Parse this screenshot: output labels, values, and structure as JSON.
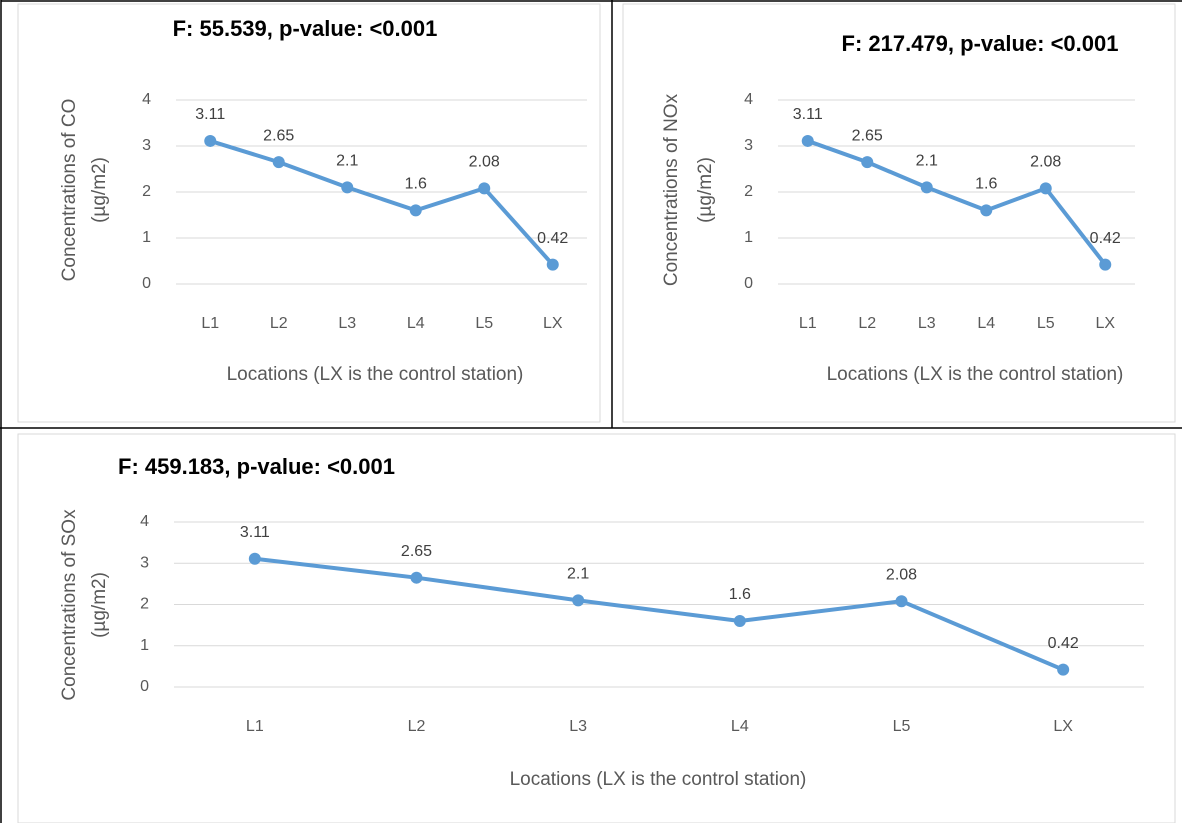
{
  "chart_data": [
    {
      "type": "line",
      "title": "F: 55.539, p-value: <0.001",
      "x_label": "Locations (LX is the control station)",
      "y_label": [
        "Concentrations of CO",
        "(µg/m2)"
      ],
      "categories": [
        "L1",
        "L2",
        "L3",
        "L4",
        "L5",
        "LX"
      ],
      "values": [
        3.11,
        2.65,
        2.1,
        1.6,
        2.08,
        0.42
      ],
      "color": "#5b9bd5",
      "ylim": [
        0,
        4
      ],
      "yticks": [
        0,
        1,
        2,
        3,
        4
      ],
      "grid": true
    },
    {
      "type": "line",
      "title": "F: 217.479, p-value: <0.001",
      "x_label": "Locations (LX is the control station)",
      "y_label": [
        "Concentrations of NOx",
        "(µg/m2)"
      ],
      "categories": [
        "L1",
        "L2",
        "L3",
        "L4",
        "L5",
        "LX"
      ],
      "values": [
        3.11,
        2.65,
        2.1,
        1.6,
        2.08,
        0.42
      ],
      "color": "#5b9bd5",
      "ylim": [
        0,
        4
      ],
      "yticks": [
        0,
        1,
        2,
        3,
        4
      ],
      "grid": true
    },
    {
      "type": "line",
      "title": "F: 459.183, p-value: <0.001",
      "x_label": "Locations (LX is the control station)",
      "y_label": [
        "Concentrations of SOx",
        "(µg/m2)"
      ],
      "categories": [
        "L1",
        "L2",
        "L3",
        "L4",
        "L5",
        "LX"
      ],
      "values": [
        3.11,
        2.65,
        2.1,
        1.6,
        2.08,
        0.42
      ],
      "color": "#5b9bd5",
      "ylim": [
        0,
        4
      ],
      "yticks": [
        0,
        1,
        2,
        3,
        4
      ],
      "grid": true
    }
  ]
}
